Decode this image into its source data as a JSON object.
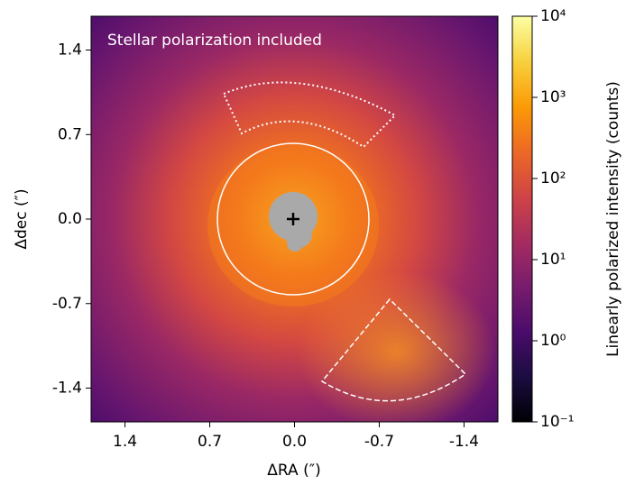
{
  "chart_data": {
    "type": "image",
    "annotation": "Stellar polarization included",
    "x_label": "ΔRA (″)",
    "y_label": "Δdec (″)",
    "xlim": [
      1.68,
      -1.68
    ],
    "ylim": [
      -1.68,
      1.68
    ],
    "xticks": [
      1.4,
      0.7,
      {
        "value": 0,
        "label": "0.0"
      },
      -0.7,
      -1.4
    ],
    "yticks": [
      -1.4,
      -0.7,
      {
        "value": 0,
        "label": "0.0"
      },
      0.7,
      1.4
    ],
    "colorbar": {
      "label": "Linearly polarized intensity (counts)",
      "colormap": "inferno",
      "log": true,
      "lim": [
        0.1,
        10000
      ],
      "ticks": [
        {
          "value": 0.1,
          "label": "10⁻¹"
        },
        {
          "value": 1,
          "label": "10⁰"
        },
        {
          "value": 10,
          "label": "10¹"
        },
        {
          "value": 100,
          "label": "10²"
        },
        {
          "value": 1000,
          "label": "10³"
        },
        {
          "value": 10000,
          "label": "10⁴"
        }
      ]
    }
  }
}
